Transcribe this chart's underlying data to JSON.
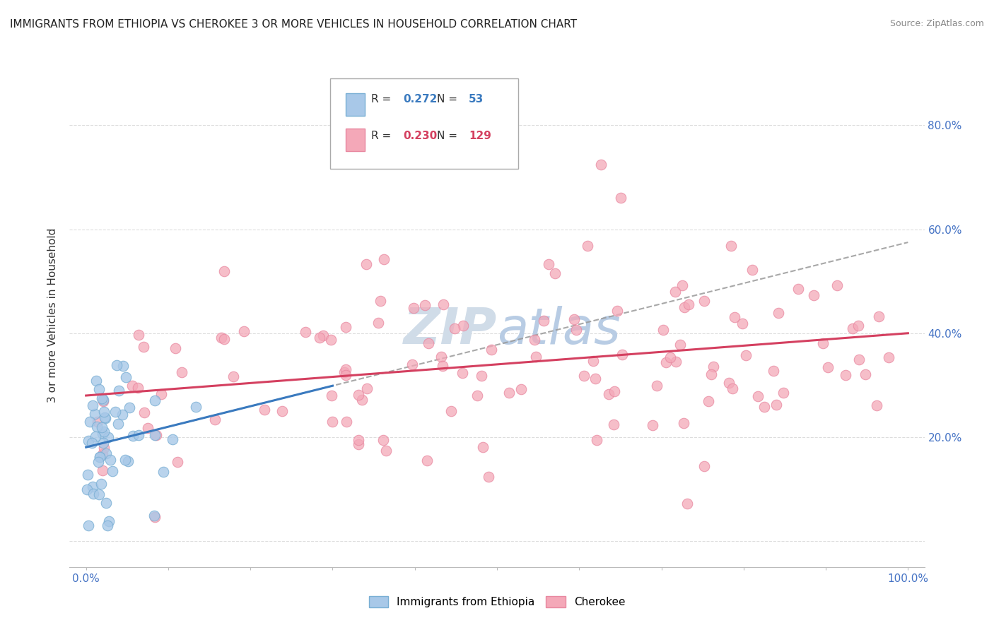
{
  "title": "IMMIGRANTS FROM ETHIOPIA VS CHEROKEE 3 OR MORE VEHICLES IN HOUSEHOLD CORRELATION CHART",
  "source": "Source: ZipAtlas.com",
  "ylabel": "3 or more Vehicles in Household",
  "blue_R": 0.272,
  "blue_N": 53,
  "pink_R": 0.23,
  "pink_N": 129,
  "blue_color": "#a8c8e8",
  "pink_color": "#f4a8b8",
  "blue_edge_color": "#7aafd4",
  "pink_edge_color": "#e888a0",
  "blue_line_color": "#3a7abf",
  "pink_line_color": "#d44060",
  "gray_dash_color": "#999999",
  "legend_label_blue": "Immigrants from Ethiopia",
  "legend_label_pink": "Cherokee",
  "blue_R_color": "#3a7abf",
  "pink_R_color": "#d44060",
  "watermark_color": "#d0dce8",
  "title_color": "#222222",
  "source_color": "#888888",
  "axis_label_color": "#333333",
  "tick_color": "#4472c4",
  "grid_color": "#dddddd",
  "xlim": [
    -2,
    102
  ],
  "ylim": [
    -5,
    92
  ],
  "ytick_vals": [
    0,
    20,
    40,
    60,
    80
  ],
  "ytick_labels": [
    "",
    "20.0%",
    "40.0%",
    "60.0%",
    "80.0%"
  ]
}
